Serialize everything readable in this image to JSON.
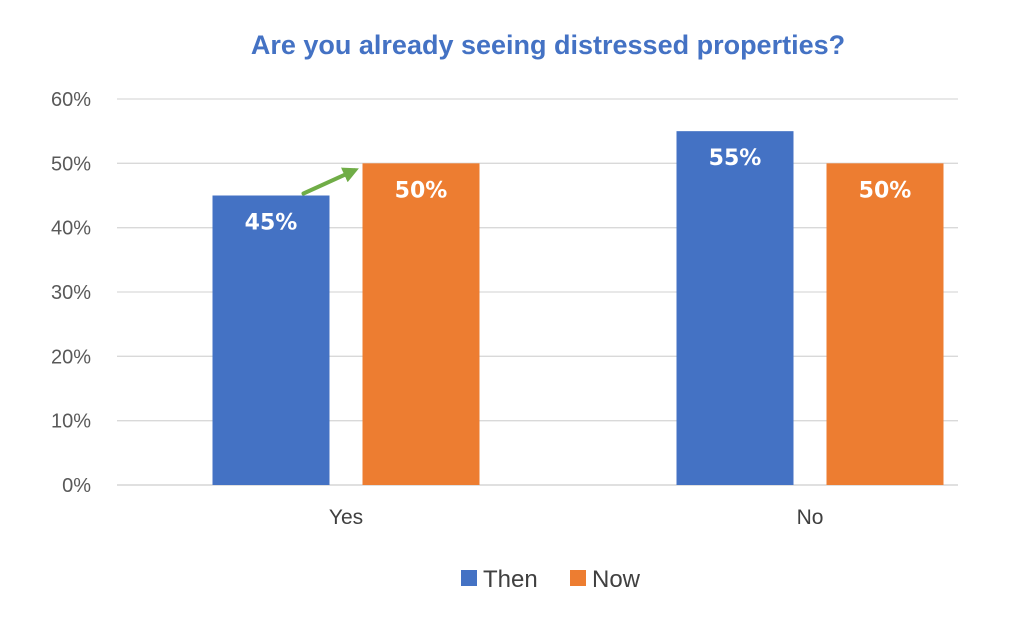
{
  "colors": {
    "title": "#4472C4",
    "then": "#4472C4",
    "now": "#ED7D31",
    "grid": "#D9D9D9",
    "arrow": "#70AD47"
  },
  "chart_data": {
    "type": "bar",
    "title": "Are you already seeing distressed properties?",
    "xlabel": "",
    "ylabel": "",
    "categories": [
      "Yes",
      "No"
    ],
    "series": [
      {
        "name": "Then",
        "values": [
          45,
          55
        ],
        "labels": [
          "45%",
          "55%"
        ]
      },
      {
        "name": "Now",
        "values": [
          50,
          50
        ],
        "labels": [
          "50%",
          "50%"
        ]
      }
    ],
    "ylim": [
      0,
      60
    ],
    "yticks": [
      0,
      10,
      20,
      30,
      40,
      50,
      60
    ],
    "ytick_labels": [
      "0%",
      "10%",
      "20%",
      "30%",
      "40%",
      "50%",
      "60%"
    ],
    "grid": true,
    "legend_position": "bottom",
    "annotations": [
      {
        "type": "arrow",
        "from": "Yes/Then",
        "to": "Yes/Now"
      }
    ]
  }
}
